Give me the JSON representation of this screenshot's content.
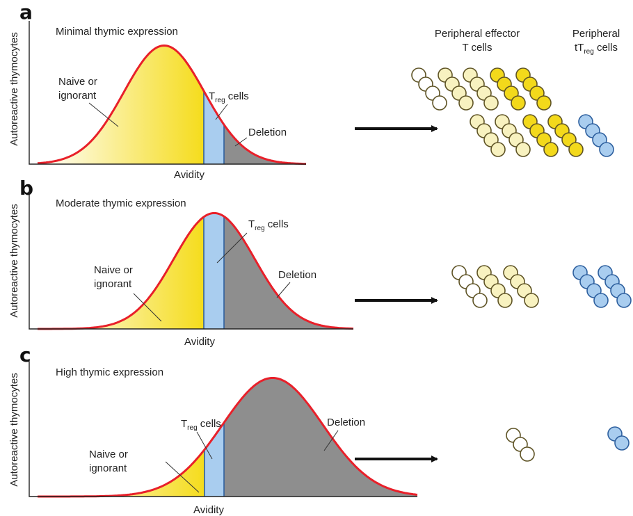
{
  "headers": {
    "effector": [
      "Peripheral effector",
      "T cells"
    ],
    "treg_line1": "Peripheral",
    "treg_line2_prefix": "tT",
    "treg_line2_sub": "reg",
    "treg_line2_suffix": " cells"
  },
  "treg_label": {
    "main": "T",
    "sub": "reg",
    "suffix": " cells"
  },
  "panels": [
    {
      "letter": "a",
      "title": "Minimal thymic expression",
      "ylabel": "Autoreactive thymocytes",
      "xlabel": "Avidity",
      "naive_label": [
        "Naive or",
        "ignorant"
      ],
      "deletion_label": "Deletion",
      "mean": 236,
      "sigma": 58,
      "peak": 0.98
    },
    {
      "letter": "b",
      "title": "Moderate thymic expression",
      "ylabel": "Autoreactive thymocytes",
      "xlabel": "Avidity",
      "naive_label": [
        "Naive or",
        "ignorant"
      ],
      "deletion_label": "Deletion",
      "mean": 308,
      "sigma": 58,
      "peak": 0.98
    },
    {
      "letter": "c",
      "title": "High thymic expression",
      "ylabel": "Autoreactive thymocytes",
      "xlabel": "Avidity",
      "naive_label": [
        "Naive or",
        "ignorant"
      ],
      "deletion_label": "Deletion",
      "mean": 392,
      "sigma": 72,
      "peak": 0.98
    }
  ],
  "colors": {
    "curve": "#e8202a",
    "naive_gradient_start": "#ffffff",
    "naive_gradient_end": "#f5dc1c",
    "treg_band": "#a9cdef",
    "treg_band_edge": "#2d5f9e",
    "deletion": "#8e8e8e",
    "effector_cell": "#f8f2c0",
    "effector_cell_bright": "#f3d91b",
    "treg_cell": "#a9cdef"
  }
}
